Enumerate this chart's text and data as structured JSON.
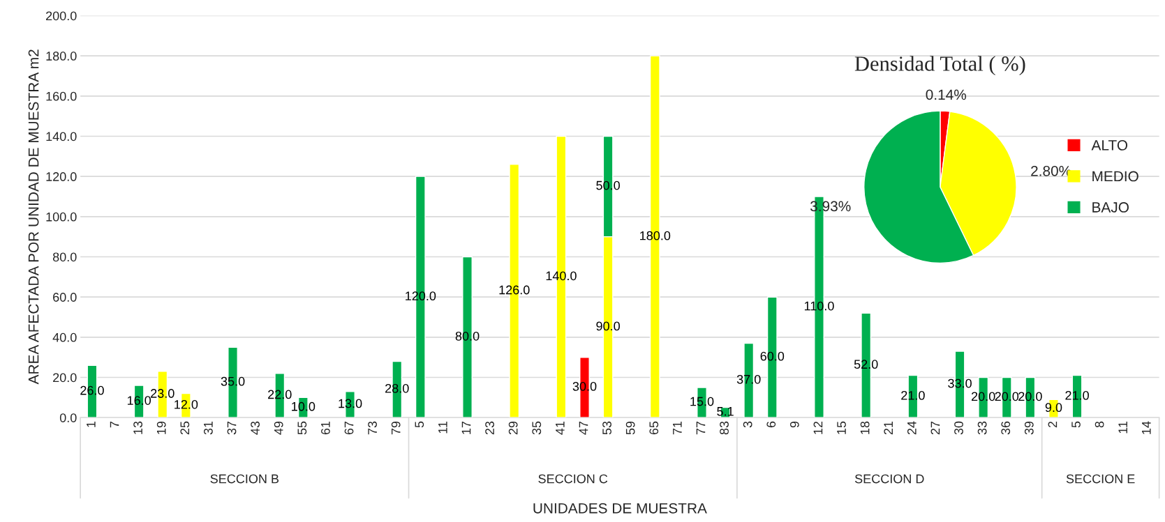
{
  "chart_data": [
    {
      "type": "bar",
      "stacked": true,
      "ylabel": "AREA AFECTADA POR UNIDAD DE MUESTRA m2",
      "xlabel": "UNIDADES DE MUESTRA",
      "categories": [
        "1",
        "7",
        "13",
        "19",
        "25",
        "31",
        "37",
        "43",
        "49",
        "55",
        "61",
        "67",
        "73",
        "79",
        "5",
        "11",
        "17",
        "23",
        "29",
        "35",
        "41",
        "47",
        "53",
        "59",
        "65",
        "71",
        "77",
        "83",
        "3",
        "6",
        "9",
        "12",
        "15",
        "18",
        "21",
        "24",
        "27",
        "30",
        "33",
        "36",
        "39",
        "2",
        "5",
        "8",
        "11",
        "14"
      ],
      "series": [
        {
          "color": "#ff0000",
          "values": [
            null,
            null,
            null,
            null,
            null,
            null,
            null,
            null,
            null,
            null,
            null,
            null,
            null,
            null,
            null,
            null,
            null,
            null,
            null,
            null,
            null,
            30,
            null,
            null,
            null,
            null,
            null,
            null,
            null,
            null,
            null,
            null,
            null,
            null,
            null,
            null,
            null,
            null,
            null,
            null,
            null,
            null,
            null,
            null,
            null,
            null
          ],
          "value_labels": [
            null,
            null,
            null,
            null,
            null,
            null,
            null,
            null,
            null,
            null,
            null,
            null,
            null,
            null,
            null,
            null,
            null,
            null,
            null,
            null,
            null,
            "30.0",
            null,
            null,
            null,
            null,
            null,
            null,
            null,
            null,
            null,
            null,
            null,
            null,
            null,
            null,
            null,
            null,
            null,
            null,
            null,
            null,
            null,
            null,
            null,
            null
          ]
        },
        {
          "color": "#ffff00",
          "values": [
            null,
            null,
            null,
            23,
            12,
            null,
            null,
            null,
            null,
            null,
            null,
            null,
            null,
            null,
            null,
            null,
            null,
            null,
            126,
            null,
            140,
            null,
            90,
            null,
            180,
            null,
            null,
            null,
            null,
            null,
            null,
            null,
            null,
            null,
            null,
            null,
            null,
            null,
            null,
            null,
            null,
            9,
            null,
            null,
            null,
            null
          ],
          "value_labels": [
            null,
            null,
            null,
            "23.0",
            "12.0",
            null,
            null,
            null,
            null,
            null,
            null,
            null,
            null,
            null,
            null,
            null,
            null,
            null,
            "126.0",
            null,
            "140.0",
            null,
            "90.0",
            null,
            "180.0",
            null,
            null,
            null,
            null,
            null,
            null,
            null,
            null,
            null,
            null,
            null,
            null,
            null,
            null,
            null,
            null,
            "9.0",
            null,
            null,
            null,
            null
          ]
        },
        {
          "color": "#00b050",
          "values": [
            26,
            null,
            16,
            null,
            null,
            null,
            35,
            null,
            22,
            10,
            null,
            13,
            null,
            28,
            120,
            null,
            80,
            null,
            null,
            null,
            null,
            null,
            50,
            null,
            null,
            null,
            15,
            5.1,
            37,
            60,
            null,
            110,
            null,
            52,
            null,
            21,
            null,
            33,
            20,
            20,
            20,
            null,
            21,
            null,
            null,
            null
          ],
          "value_labels": [
            "26.0",
            null,
            "16.0",
            null,
            null,
            null,
            "35.0",
            null,
            "22.0",
            "10.0",
            null,
            "13.0",
            null,
            "28.0",
            "120.0",
            null,
            "80.0",
            null,
            null,
            null,
            null,
            null,
            "50.0",
            null,
            null,
            null,
            "15.0",
            "5.1",
            "37.0",
            "60.0",
            null,
            "110.0",
            null,
            "52.0",
            null,
            "21.0",
            null,
            "33.0",
            "20.0",
            "20.0",
            "20.0",
            null,
            "21.0",
            null,
            null,
            null
          ]
        }
      ],
      "ylim": [
        0,
        200
      ],
      "yticks": [
        {
          "value": 0,
          "label": "0.0"
        },
        {
          "value": 20,
          "label": "20.0"
        },
        {
          "value": 40,
          "label": "40.0"
        },
        {
          "value": 60,
          "label": "60.0"
        },
        {
          "value": 80,
          "label": "80.0"
        },
        {
          "value": 100,
          "label": "100.0"
        },
        {
          "value": 120,
          "label": "120.0"
        },
        {
          "value": 140,
          "label": "140.0"
        },
        {
          "value": 160,
          "label": "160.0"
        },
        {
          "value": 180,
          "label": "180.0"
        },
        {
          "value": 200,
          "label": "200.0"
        }
      ],
      "grid": "y",
      "annotations": [
        "SECCION B",
        "SECCION C",
        "SECCION D",
        "SECCION E"
      ]
    },
    {
      "type": "pie",
      "title": "Densidad Total ( %)",
      "categories": [
        "ALTO",
        "MEDIO",
        "BAJO"
      ],
      "values": [
        0.14,
        2.8,
        3.93
      ],
      "colors": [
        "#ff0000",
        "#ffff00",
        "#00b050"
      ],
      "value_labels": [
        "0.14%",
        "2.80%",
        "3.93%"
      ],
      "legend": "right"
    }
  ]
}
